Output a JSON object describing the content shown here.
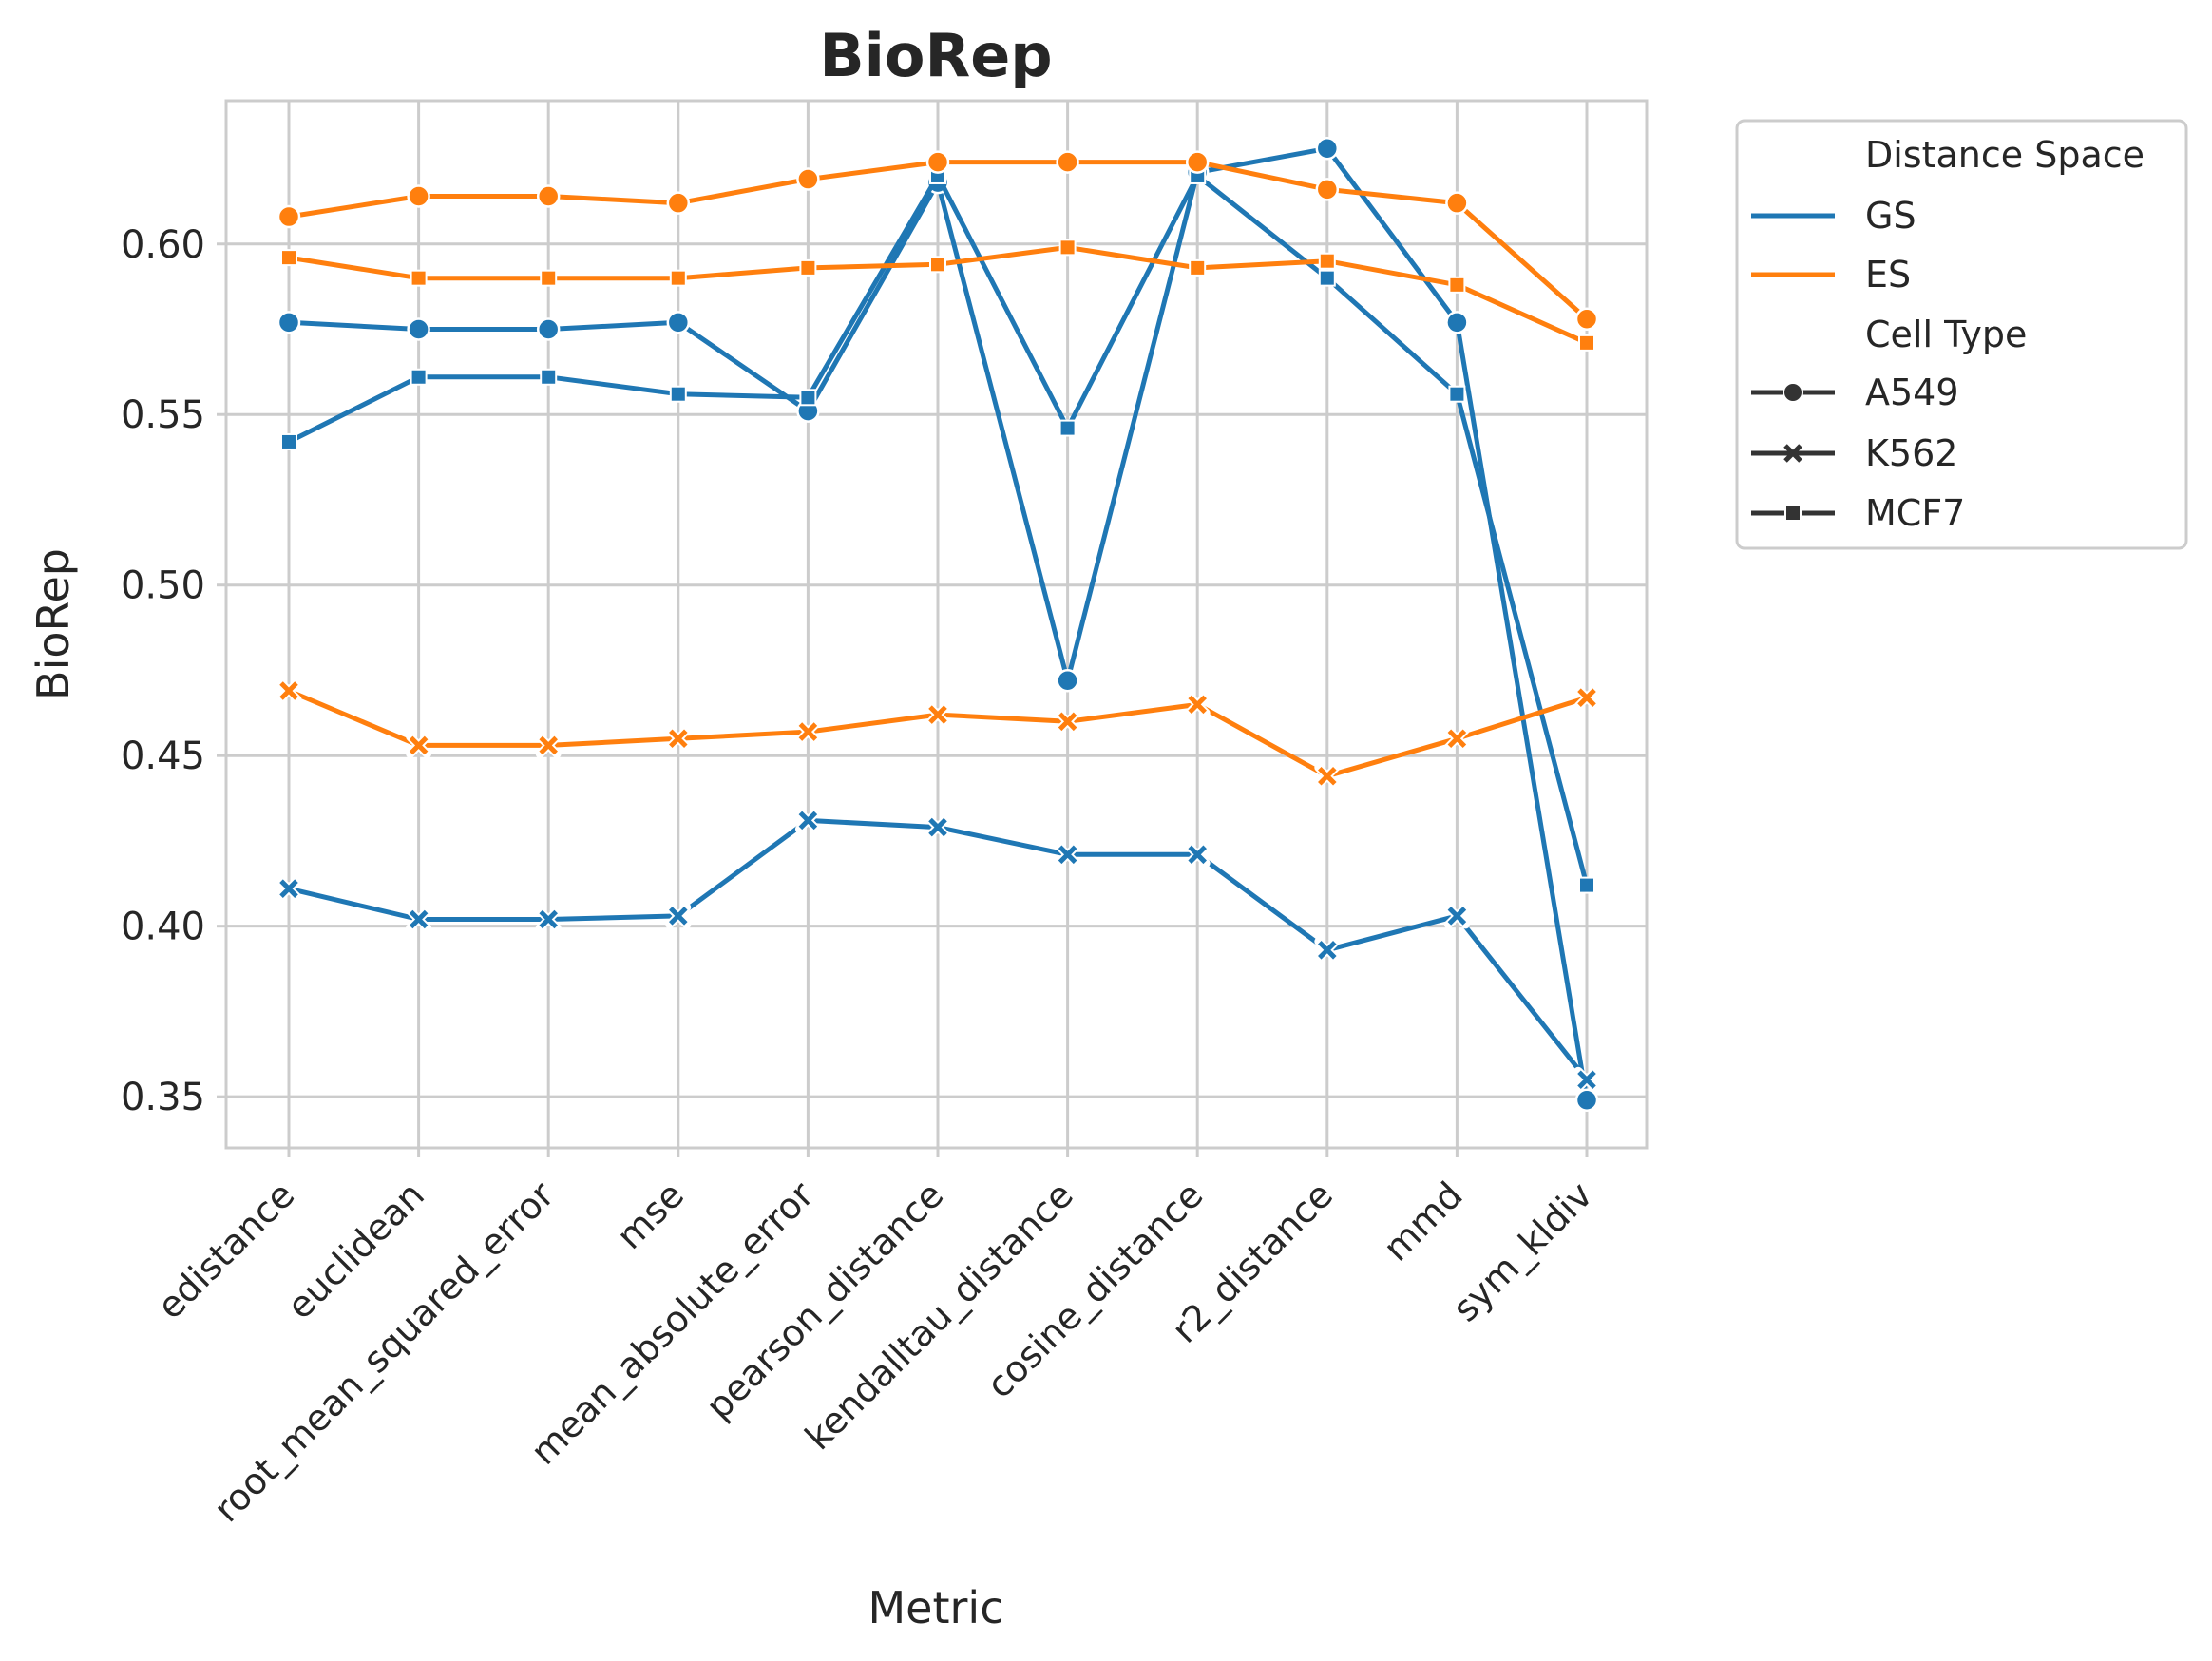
{
  "chart_data": {
    "type": "line",
    "title": "BioRep",
    "xlabel": "Metric",
    "ylabel": "BioRep",
    "categories": [
      "edistance",
      "euclidean",
      "root_mean_squared_error",
      "mse",
      "mean_absolute_error",
      "pearson_distance",
      "kendalltau_distance",
      "cosine_distance",
      "r2_distance",
      "mmd",
      "sym_kldiv"
    ],
    "yticks": [
      "0.35",
      "0.40",
      "0.45",
      "0.50",
      "0.55",
      "0.60"
    ],
    "ylim": [
      0.335,
      0.642
    ],
    "grid": true,
    "legend_position": "outside-right",
    "colors": {
      "GS": "#1f77b4",
      "ES": "#ff7f0e"
    },
    "legend": {
      "hue_title": "Distance Space",
      "hue_entries": [
        "GS",
        "ES"
      ],
      "style_title": "Cell Type",
      "style_entries": [
        "A549",
        "K562",
        "MCF7"
      ]
    },
    "series": [
      {
        "space": "GS",
        "cell_type": "A549",
        "marker": "circle",
        "values": [
          0.577,
          0.575,
          0.575,
          0.577,
          0.551,
          0.618,
          0.472,
          0.621,
          0.628,
          0.577,
          0.349
        ]
      },
      {
        "space": "GS",
        "cell_type": "K562",
        "marker": "x",
        "values": [
          0.411,
          0.402,
          0.402,
          0.403,
          0.431,
          0.429,
          0.421,
          0.421,
          0.393,
          0.403,
          0.355
        ]
      },
      {
        "space": "GS",
        "cell_type": "MCF7",
        "marker": "square",
        "values": [
          0.542,
          0.561,
          0.561,
          0.556,
          0.555,
          0.62,
          0.546,
          0.62,
          0.59,
          0.556,
          0.412
        ]
      },
      {
        "space": "ES",
        "cell_type": "A549",
        "marker": "circle",
        "values": [
          0.608,
          0.614,
          0.614,
          0.612,
          0.619,
          0.624,
          0.624,
          0.624,
          0.616,
          0.612,
          0.578
        ]
      },
      {
        "space": "ES",
        "cell_type": "K562",
        "marker": "x",
        "values": [
          0.469,
          0.453,
          0.453,
          0.455,
          0.457,
          0.462,
          0.46,
          0.465,
          0.444,
          0.455,
          0.467
        ]
      },
      {
        "space": "ES",
        "cell_type": "MCF7",
        "marker": "square",
        "values": [
          0.596,
          0.59,
          0.59,
          0.59,
          0.593,
          0.594,
          0.599,
          0.593,
          0.595,
          0.588,
          0.571
        ]
      }
    ]
  }
}
